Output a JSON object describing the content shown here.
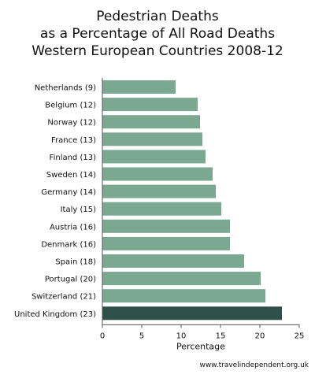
{
  "chart_data": {
    "type": "bar",
    "orientation": "horizontal",
    "title": [
      "Pedestrian Deaths",
      "as a Percentage of All Road Deaths",
      "Western European Countries 2008-12"
    ],
    "categories": [
      "Netherlands (9)",
      "Belgium (12)",
      "Norway (12)",
      "France (13)",
      "Finland (13)",
      "Sweden (14)",
      "Germany (14)",
      "Italy (15)",
      "Austria (16)",
      "Denmark (16)",
      "Spain (18)",
      "Portugal (20)",
      "Switzerland (21)",
      "United Kingdom (23)"
    ],
    "values": [
      9.3,
      12.1,
      12.4,
      12.7,
      13.1,
      14.0,
      14.4,
      15.1,
      16.2,
      16.2,
      18.0,
      20.1,
      20.7,
      22.8
    ],
    "highlight_index": 13,
    "xlabel": "Percentage",
    "ylabel": "",
    "xlim": [
      0,
      25
    ],
    "xticks": [
      0,
      5,
      10,
      15,
      20,
      25
    ],
    "grid": false,
    "colors": {
      "bar": "#7aa890",
      "highlight": "#2f4f4a",
      "axis": "#555555"
    }
  },
  "source": "www.travelindependent.org.uk"
}
